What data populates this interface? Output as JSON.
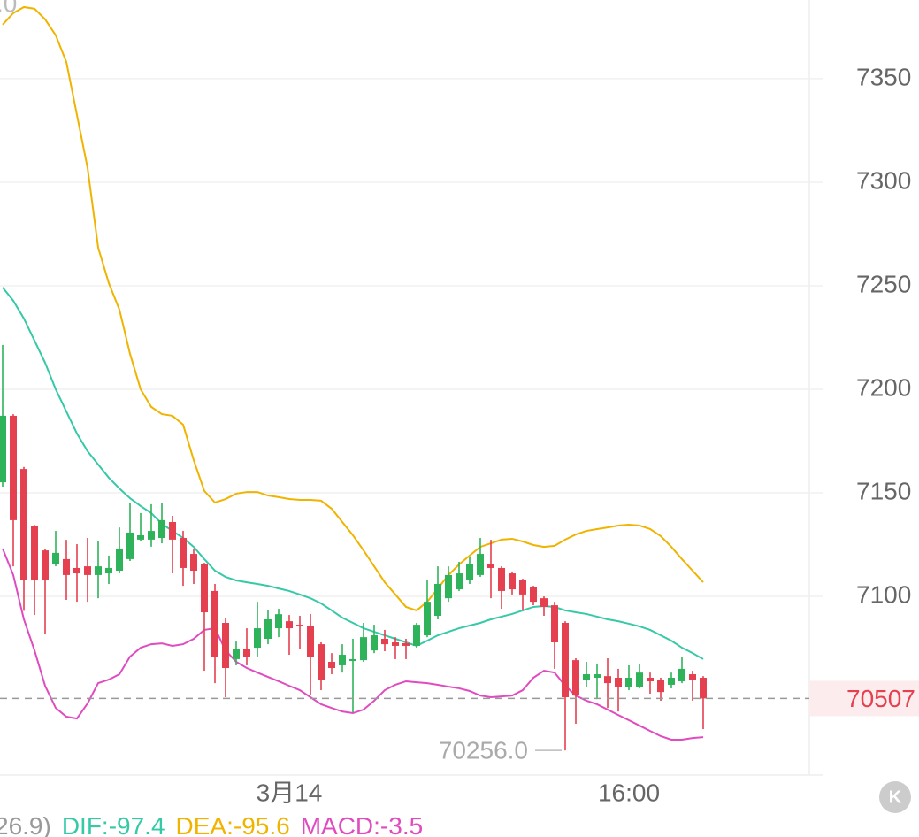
{
  "chart_data": {
    "type": "candlestick",
    "categories": [
      null,
      null,
      null,
      null,
      null,
      null,
      null,
      null,
      null,
      null,
      null,
      null,
      null,
      null,
      null,
      null,
      null,
      null,
      null,
      null,
      null,
      null,
      null,
      null,
      null,
      null,
      null,
      "3月14",
      null,
      null,
      null,
      null,
      null,
      null,
      null,
      null,
      null,
      null,
      null,
      null,
      null,
      null,
      null,
      null,
      null,
      null,
      null,
      null,
      null,
      null,
      null,
      null,
      null,
      null,
      null,
      null,
      null,
      null,
      null,
      "16:00",
      null,
      null,
      null,
      null,
      null,
      null,
      null
    ],
    "open": [
      71551,
      71872,
      71615,
      71338,
      71222,
      71155,
      71180,
      71137,
      71145,
      71103,
      71111,
      71124,
      71180,
      71274,
      71274,
      71282,
      71359,
      71282,
      71205,
      71154,
      71026,
      70872,
      70697,
      70748,
      70752,
      70795,
      70846,
      70880,
      70863,
      70855,
      70769,
      70684,
      70667,
      70688,
      70692,
      70739,
      70795,
      70778,
      70774,
      70761,
      70812,
      70906,
      70991,
      71034,
      71077,
      71103,
      71154,
      71137,
      71111,
      71077,
      71043,
      70991,
      70957,
      70872,
      70692,
      70598,
      70607,
      70615,
      70607,
      70564,
      70564,
      70607,
      70598,
      70573,
      70590,
      70624,
      70607
    ],
    "high": [
      72214,
      71880,
      71625,
      71345,
      71230,
      71316,
      71273,
      71252,
      71282,
      71265,
      71197,
      71333,
      71453,
      71402,
      71445,
      71453,
      71389,
      71316,
      71231,
      71162,
      71060,
      70897,
      70782,
      70846,
      70974,
      70932,
      70940,
      70910,
      70906,
      70915,
      70778,
      70726,
      70769,
      70795,
      70872,
      70863,
      70838,
      70803,
      70795,
      70872,
      71081,
      71145,
      71145,
      71167,
      71188,
      71282,
      71273,
      71145,
      71120,
      71085,
      71051,
      71000,
      70974,
      70880,
      70701,
      70684,
      70675,
      70701,
      70650,
      70667,
      70675,
      70632,
      70607,
      70632,
      70709,
      70641,
      70615
    ],
    "low": [
      71530,
      71145,
      70930,
      70910,
      70820,
      71145,
      70983,
      70974,
      70974,
      70991,
      71060,
      71111,
      71171,
      71265,
      71240,
      71256,
      71111,
      71051,
      71060,
      70641,
      70581,
      70513,
      70667,
      70667,
      70709,
      70769,
      70803,
      70718,
      70744,
      70526,
      70547,
      70624,
      70632,
      70440,
      70684,
      70726,
      70735,
      70697,
      70697,
      70752,
      70803,
      70889,
      70974,
      71026,
      71060,
      71094,
      70991,
      70940,
      71009,
      70932,
      70957,
      70906,
      70650,
      70256,
      70385,
      70564,
      70504,
      70461,
      70444,
      70547,
      70556,
      70530,
      70496,
      70556,
      70581,
      70496,
      70359
    ],
    "close": [
      71872,
      71368,
      71081,
      71081,
      71081,
      71210,
      71103,
      71111,
      71103,
      71145,
      71137,
      71231,
      71308,
      71295,
      71316,
      71368,
      71274,
      71137,
      71124,
      70923,
      70709,
      70654,
      70748,
      70709,
      70846,
      70889,
      70914,
      70846,
      70855,
      70709,
      70598,
      70654,
      70718,
      70697,
      70803,
      70812,
      70769,
      70761,
      70761,
      70863,
      70974,
      71060,
      71103,
      71111,
      71154,
      71205,
      71137,
      71026,
      71034,
      71009,
      70974,
      70949,
      70778,
      70513,
      70521,
      70624,
      70624,
      70581,
      70564,
      70607,
      70632,
      70590,
      70538,
      70607,
      70650,
      70598,
      70507
    ],
    "up_color": "#2fb35a",
    "down_color": "#e5404f",
    "overlays": [
      {
        "color": "#f0b400",
        "values": [
          73761,
          73817,
          73846,
          73838,
          73787,
          73710,
          73581,
          73325,
          73069,
          72684,
          72513,
          72385,
          72171,
          72000,
          71915,
          71880,
          71872,
          71829,
          71658,
          71509,
          71453,
          71470,
          71496,
          71504,
          71504,
          71487,
          71479,
          71470,
          71466,
          71466,
          71462,
          71423,
          71359,
          71295,
          71222,
          71145,
          71068,
          71009,
          70949,
          70932,
          70974,
          71038,
          71103,
          71154,
          71197,
          71239,
          71256,
          71274,
          71278,
          71265,
          71248,
          71239,
          71244,
          71274,
          71299,
          71316,
          71325,
          71333,
          71342,
          71346,
          71342,
          71325,
          71291,
          71239,
          71180,
          71124,
          71068
        ]
      },
      {
        "color": "#36c9a8",
        "values": [
          72492,
          72428,
          72342,
          72235,
          72128,
          72000,
          71893,
          71786,
          71701,
          71637,
          71573,
          71521,
          71474,
          71436,
          71402,
          71350,
          71316,
          71282,
          71239,
          71180,
          71124,
          71094,
          71077,
          71068,
          71060,
          71051,
          71038,
          71026,
          71009,
          70991,
          70966,
          70932,
          70897,
          70872,
          70846,
          70829,
          70812,
          70795,
          70778,
          70761,
          70786,
          70812,
          70829,
          70846,
          70859,
          70872,
          70889,
          70902,
          70915,
          70932,
          70949,
          70953,
          70949,
          70932,
          70923,
          70915,
          70902,
          70889,
          70880,
          70868,
          70855,
          70838,
          70812,
          70786,
          70752,
          70726,
          70697
        ]
      },
      {
        "color": "#e04bc0",
        "values": [
          71231,
          71103,
          70889,
          70739,
          70568,
          70461,
          70419,
          70410,
          70483,
          70581,
          70598,
          70624,
          70709,
          70752,
          70769,
          70773,
          70761,
          70769,
          70795,
          70838,
          70846,
          70739,
          70684,
          70654,
          70632,
          70611,
          70590,
          70568,
          70547,
          70513,
          70479,
          70461,
          70444,
          70436,
          70453,
          70496,
          70547,
          70573,
          70590,
          70585,
          70581,
          70573,
          70564,
          70556,
          70543,
          70521,
          70513,
          70517,
          70521,
          70547,
          70607,
          70641,
          70632,
          70568,
          70521,
          70496,
          70479,
          70453,
          70427,
          70402,
          70376,
          70350,
          70325,
          70308,
          70308,
          70316,
          70320
        ]
      }
    ],
    "ylim": [
      70137,
      73880
    ],
    "yticks": [
      {
        "value": 73500,
        "label": "7350"
      },
      {
        "value": 73000,
        "label": "7300"
      },
      {
        "value": 72500,
        "label": "7250"
      },
      {
        "value": 72000,
        "label": "7200"
      },
      {
        "value": 71500,
        "label": "7150"
      },
      {
        "value": 71000,
        "label": "7100"
      }
    ],
    "grid": true,
    "corner_label": ".0",
    "last_price": {
      "value": 70507,
      "label": "70507"
    },
    "low_marker": {
      "value": 70256,
      "label": "70256.0"
    },
    "indicator_labels": [
      {
        "text": "26.9)",
        "color": "#999999"
      },
      {
        "text": "DIF:-97.4",
        "color": "#36c9a8"
      },
      {
        "text": "DEA:-95.6",
        "color": "#f0b400"
      },
      {
        "text": "MACD:-3.5",
        "color": "#e04bc0"
      }
    ]
  }
}
